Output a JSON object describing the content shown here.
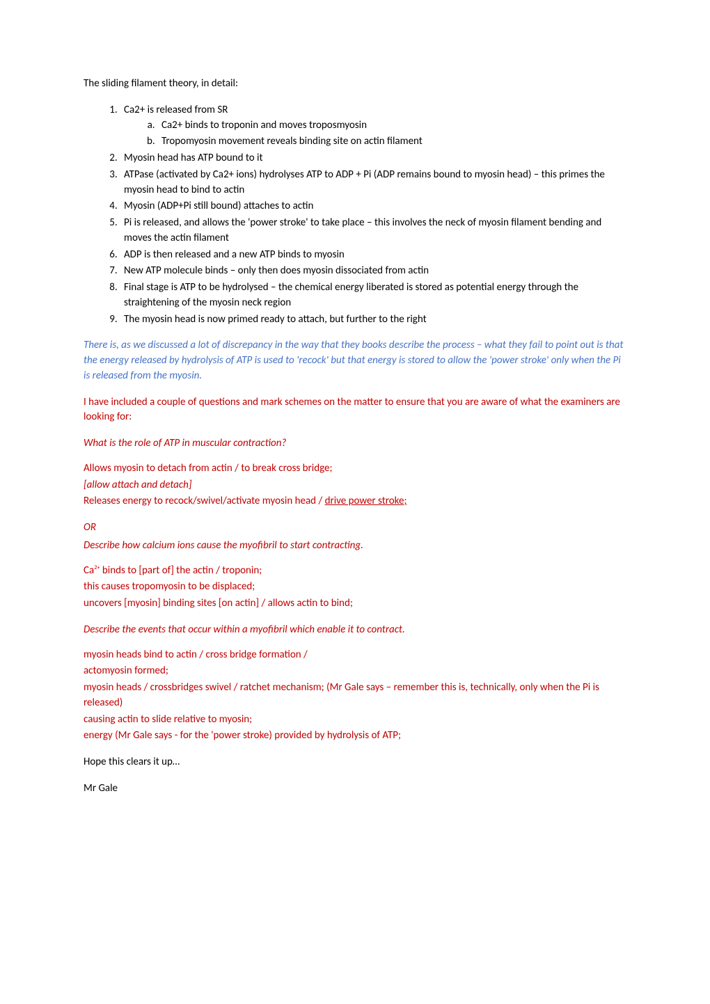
{
  "intro": "The sliding filament theory, in detail:",
  "list": {
    "i1": "Ca2+ is released from SR",
    "i1a": "Ca2+ binds to troponin and moves troposmyosin",
    "i1b": "Tropomyosin movement reveals binding site on actin filament",
    "i2": "Myosin head has ATP bound to it",
    "i3": "ATPase (activated by Ca2+ ions) hydrolyses ATP to ADP + Pi (ADP remains bound to myosin head) – this primes the myosin head to bind to actin",
    "i4": "Myosin (ADP+Pi still bound) attaches to actin",
    "i5": "Pi is released, and allows the 'power stroke' to take place – this involves the neck of myosin filament bending and moves the actin filament",
    "i6": "ADP is then released and a new ATP binds to myosin",
    "i7": "New ATP molecule binds – only then does myosin dissociated from actin",
    "i8": "Final stage is ATP to be hydrolysed – the chemical energy liberated is stored as potential energy through the straightening of the myosin neck region",
    "i9": "The myosin head is now primed ready to attach, but further to the right"
  },
  "discrepancy": "There is, as we discussed a lot of discrepancy in the way that they books describe the process – what they fail to point out is that the energy released by hydrolysis of ATP is used to 'recock' but that energy is stored to allow the 'power stroke' only when the Pi is released from the myosin.",
  "examiner_note": "I have included a couple of questions and mark schemes on the matter to ensure that you are aware of what the examiners are looking for:",
  "q1": "What is the role of ATP in muscular contraction?",
  "a1_line1": "Allows myosin to detach from actin / to break cross bridge;",
  "a1_allow": "[allow attach and detach]",
  "a1_line2a": "Releases energy to recock/swivel/activate myosin head / ",
  "a1_line2b": "drive power stroke;",
  "or": "OR",
  "q2": "Describe how calcium ions cause the myofibril to start contracting.",
  "ca_pre": "Ca",
  "ca_sup": "2+",
  "a2_line1_rest": " binds to [part of] the actin / troponin;",
  "a2_line2": "this causes tropomyosin to be displaced;",
  "a2_line3": "uncovers [myosin] binding sites [on actin] / allows actin to bind;",
  "q3": "Describe the events that occur within a myofibril which enable it to contract.",
  "a3_line1": "myosin heads bind to actin / cross bridge formation /",
  "a3_line2": "actomyosin formed;",
  "a3_line3": "myosin heads / crossbridges swivel / ratchet mechanism; (Mr Gale says – remember this is, technically, only when the Pi is released)",
  "a3_line4": "causing actin to slide relative to myosin;",
  "a3_line5": "energy (Mr Gale says - for the 'power stroke) provided by hydrolysis of ATP;",
  "signoff1": "Hope this clears it up…",
  "signoff2": "Mr Gale",
  "colors": {
    "blue": "#4472c4",
    "red": "#c00000",
    "black": "#000000",
    "bg": "#ffffff"
  }
}
